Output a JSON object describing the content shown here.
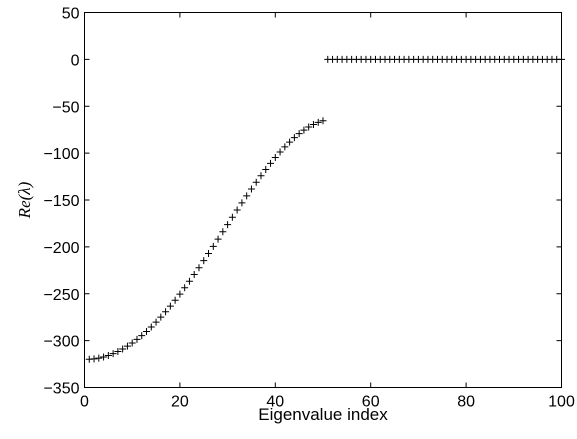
{
  "chart_data": {
    "type": "scatter",
    "title": "",
    "xlabel": "Eigenvalue index",
    "ylabel": "Re(λ)",
    "xlim": [
      0,
      100
    ],
    "ylim": [
      -350,
      50
    ],
    "xticks": [
      0,
      20,
      40,
      60,
      80,
      100
    ],
    "xtick_labels": [
      "0",
      "20",
      "40",
      "60",
      "80",
      "100"
    ],
    "yticks": [
      50,
      0,
      -50,
      -100,
      -150,
      -200,
      -250,
      -300,
      -350
    ],
    "ytick_labels": [
      "50",
      "0",
      "−50",
      "−100",
      "−150",
      "−200",
      "−250",
      "−300",
      "−350"
    ],
    "grid": false,
    "marker": "+",
    "series": [
      {
        "x": [
          1,
          2,
          3,
          4,
          5,
          6,
          7,
          8,
          9,
          10,
          11,
          12,
          13,
          14,
          15,
          16,
          17,
          18,
          19,
          20,
          21,
          22,
          23,
          24,
          25,
          26,
          27,
          28,
          29,
          30,
          31,
          32,
          33,
          34,
          35,
          36,
          37,
          38,
          39,
          40,
          41,
          42,
          43,
          44,
          45,
          46,
          47,
          48,
          49,
          50,
          51,
          52,
          53,
          54,
          55,
          56,
          57,
          58,
          59,
          60,
          61,
          62,
          63,
          64,
          65,
          66,
          67,
          68,
          69,
          70,
          71,
          72,
          73,
          74,
          75,
          76,
          77,
          78,
          79,
          80,
          81,
          82,
          83,
          84,
          85,
          86,
          87,
          88,
          89,
          90,
          91,
          92,
          93,
          94,
          95,
          96,
          97,
          98,
          99,
          100
        ],
        "y": [
          -319.9,
          -319.4,
          -318.6,
          -317.4,
          -315.8,
          -313.9,
          -311.6,
          -308.9,
          -305.9,
          -302.5,
          -298.7,
          -294.6,
          -290.2,
          -285.4,
          -280.3,
          -274.9,
          -269.2,
          -263.2,
          -256.9,
          -250.4,
          -243.6,
          -236.7,
          -229.5,
          -222.2,
          -214.7,
          -207.1,
          -199.4,
          -191.7,
          -183.9,
          -176.2,
          -168.4,
          -160.7,
          -153.1,
          -145.6,
          -138.3,
          -131.1,
          -124.1,
          -117.4,
          -110.9,
          -104.7,
          -98.8,
          -93.3,
          -88.2,
          -83.5,
          -79.2,
          -75.4,
          -72.1,
          -69.4,
          -67.2,
          -65.5,
          0,
          0,
          0,
          0,
          0,
          0,
          0,
          0,
          0,
          0,
          0,
          0,
          0,
          0,
          0,
          0,
          0,
          0,
          0,
          0,
          0,
          0,
          0,
          0,
          0,
          0,
          0,
          0,
          0,
          0,
          0,
          0,
          0,
          0,
          0,
          0,
          0,
          0,
          0,
          0,
          0,
          0,
          0,
          0,
          0,
          0,
          0,
          0,
          0,
          0
        ]
      }
    ]
  }
}
